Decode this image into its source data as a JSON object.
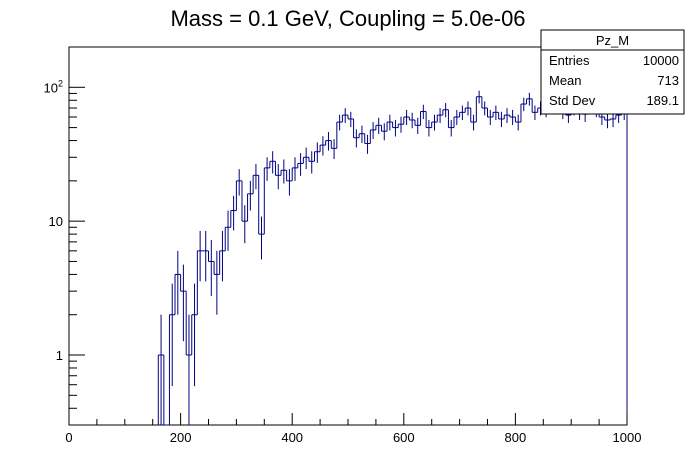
{
  "chart_data": {
    "type": "bar",
    "title": "Mass = 0.1 GeV, Coupling = 5.0e-06",
    "xlabel": "",
    "ylabel": "",
    "xlim": [
      0,
      1000
    ],
    "ylim": [
      0.3,
      200
    ],
    "yscale": "log",
    "grid": false,
    "bin_width": 10,
    "x_ticks": [
      0,
      200,
      400,
      600,
      800,
      1000
    ],
    "x_tick_labels": [
      "0",
      "200",
      "400",
      "600",
      "800",
      "1000"
    ],
    "y_ticks": [
      1,
      10,
      100
    ],
    "y_tick_labels": [
      "1",
      "10",
      "10^2"
    ],
    "series": [
      {
        "color": "#000080",
        "bins": [
          {
            "x": 165,
            "y": 1
          },
          {
            "x": 175,
            "y": 0
          },
          {
            "x": 185,
            "y": 2
          },
          {
            "x": 195,
            "y": 4
          },
          {
            "x": 205,
            "y": 3
          },
          {
            "x": 215,
            "y": 1
          },
          {
            "x": 225,
            "y": 2
          },
          {
            "x": 235,
            "y": 6
          },
          {
            "x": 245,
            "y": 6
          },
          {
            "x": 255,
            "y": 5
          },
          {
            "x": 265,
            "y": 4
          },
          {
            "x": 275,
            "y": 6
          },
          {
            "x": 285,
            "y": 9
          },
          {
            "x": 295,
            "y": 12
          },
          {
            "x": 305,
            "y": 20
          },
          {
            "x": 315,
            "y": 10
          },
          {
            "x": 325,
            "y": 16
          },
          {
            "x": 335,
            "y": 22
          },
          {
            "x": 345,
            "y": 8
          },
          {
            "x": 355,
            "y": 25
          },
          {
            "x": 365,
            "y": 28
          },
          {
            "x": 375,
            "y": 22
          },
          {
            "x": 385,
            "y": 24
          },
          {
            "x": 395,
            "y": 20
          },
          {
            "x": 405,
            "y": 25
          },
          {
            "x": 415,
            "y": 27
          },
          {
            "x": 425,
            "y": 30
          },
          {
            "x": 435,
            "y": 28
          },
          {
            "x": 445,
            "y": 33
          },
          {
            "x": 455,
            "y": 37
          },
          {
            "x": 465,
            "y": 40
          },
          {
            "x": 475,
            "y": 35
          },
          {
            "x": 485,
            "y": 55
          },
          {
            "x": 495,
            "y": 62
          },
          {
            "x": 505,
            "y": 58
          },
          {
            "x": 515,
            "y": 42
          },
          {
            "x": 525,
            "y": 45
          },
          {
            "x": 535,
            "y": 38
          },
          {
            "x": 545,
            "y": 48
          },
          {
            "x": 555,
            "y": 52
          },
          {
            "x": 565,
            "y": 47
          },
          {
            "x": 575,
            "y": 55
          },
          {
            "x": 585,
            "y": 50
          },
          {
            "x": 595,
            "y": 53
          },
          {
            "x": 605,
            "y": 60
          },
          {
            "x": 615,
            "y": 57
          },
          {
            "x": 625,
            "y": 52
          },
          {
            "x": 635,
            "y": 66
          },
          {
            "x": 645,
            "y": 50
          },
          {
            "x": 655,
            "y": 55
          },
          {
            "x": 665,
            "y": 62
          },
          {
            "x": 675,
            "y": 68
          },
          {
            "x": 685,
            "y": 50
          },
          {
            "x": 695,
            "y": 60
          },
          {
            "x": 705,
            "y": 65
          },
          {
            "x": 715,
            "y": 70
          },
          {
            "x": 725,
            "y": 55
          },
          {
            "x": 735,
            "y": 85
          },
          {
            "x": 745,
            "y": 70
          },
          {
            "x": 755,
            "y": 60
          },
          {
            "x": 765,
            "y": 65
          },
          {
            "x": 775,
            "y": 58
          },
          {
            "x": 785,
            "y": 62
          },
          {
            "x": 795,
            "y": 60
          },
          {
            "x": 805,
            "y": 55
          },
          {
            "x": 815,
            "y": 75
          },
          {
            "x": 825,
            "y": 82
          },
          {
            "x": 835,
            "y": 65
          },
          {
            "x": 845,
            "y": 70
          },
          {
            "x": 855,
            "y": 68
          },
          {
            "x": 865,
            "y": 75
          },
          {
            "x": 875,
            "y": 80
          },
          {
            "x": 885,
            "y": 66
          },
          {
            "x": 895,
            "y": 62
          },
          {
            "x": 905,
            "y": 70
          },
          {
            "x": 915,
            "y": 65
          },
          {
            "x": 925,
            "y": 63
          },
          {
            "x": 935,
            "y": 72
          },
          {
            "x": 945,
            "y": 68
          },
          {
            "x": 955,
            "y": 60
          },
          {
            "x": 965,
            "y": 57
          },
          {
            "x": 975,
            "y": 58
          },
          {
            "x": 985,
            "y": 62
          },
          {
            "x": 995,
            "y": 65
          }
        ]
      }
    ],
    "stats_box": {
      "title": "Pz_M",
      "rows": [
        {
          "label": "Entries",
          "value": "10000"
        },
        {
          "label": "Mean",
          "value": "713"
        },
        {
          "label": "Std Dev",
          "value": "189.1"
        }
      ]
    }
  }
}
